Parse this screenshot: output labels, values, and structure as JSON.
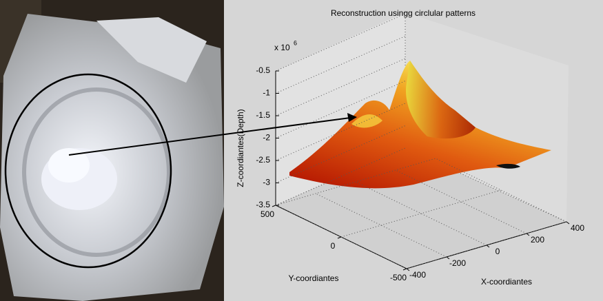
{
  "plot": {
    "title": "Reconstruction usingg circlular patterns",
    "z_axis": {
      "label": "Z-coordiantes(Depth)",
      "multiplier": "x 10",
      "exponent": "6",
      "ticks": [
        -0.5,
        -1,
        -1.5,
        -2,
        -2.5,
        -3,
        -3.5
      ]
    },
    "y_axis": {
      "label": "Y-coordiantes",
      "ticks": [
        500,
        0,
        -500
      ]
    },
    "x_axis": {
      "label": "X-coordiantes",
      "ticks": [
        -400,
        -200,
        0,
        200,
        400
      ]
    }
  }
}
